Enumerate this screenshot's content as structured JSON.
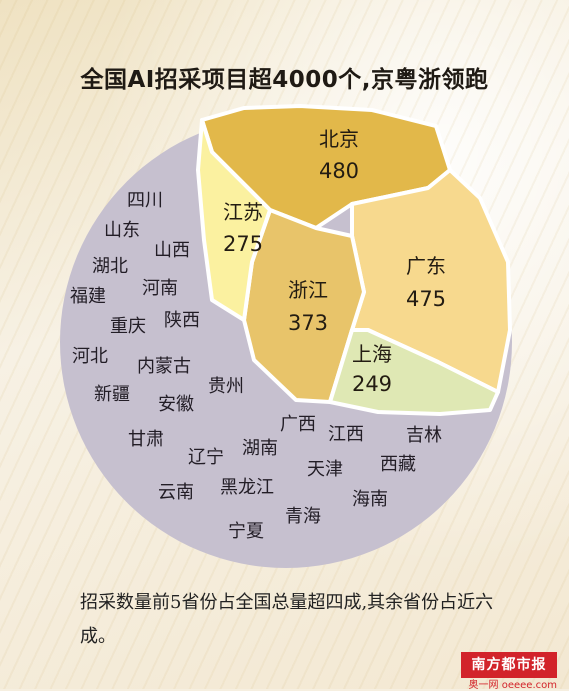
{
  "title": "全国AI招采项目超4000个,京粤浙领跑",
  "chart_data": {
    "type": "voronoi-treemap",
    "title": "全国AI招采项目超4000个,京粤浙领跑",
    "top_regions": [
      {
        "name": "北京",
        "value": 480,
        "color": "#e2b84a"
      },
      {
        "name": "广东",
        "value": 475,
        "color": "#f7d98e"
      },
      {
        "name": "浙江",
        "value": 373,
        "color": "#e8c46a"
      },
      {
        "name": "江苏",
        "value": 275,
        "color": "#fbf1a0"
      },
      {
        "name": "上海",
        "value": 249,
        "color": "#dfe8b4"
      }
    ],
    "other_regions": [
      "四川",
      "山东",
      "山西",
      "湖北",
      "河南",
      "福建",
      "陕西",
      "重庆",
      "河北",
      "内蒙古",
      "贵州",
      "新疆",
      "安徽",
      "甘肃",
      "广西",
      "江西",
      "吉林",
      "辽宁",
      "湖南",
      "西藏",
      "天津",
      "云南",
      "黑龙江",
      "青海",
      "海南",
      "宁夏"
    ],
    "other_color": "#c6c0cf"
  },
  "caption": "招采数量前5省份占全国总量超四成,其余省份占近六成。",
  "logo": {
    "name": "南方都市报",
    "sub": "奥一网 oeeee.com"
  }
}
